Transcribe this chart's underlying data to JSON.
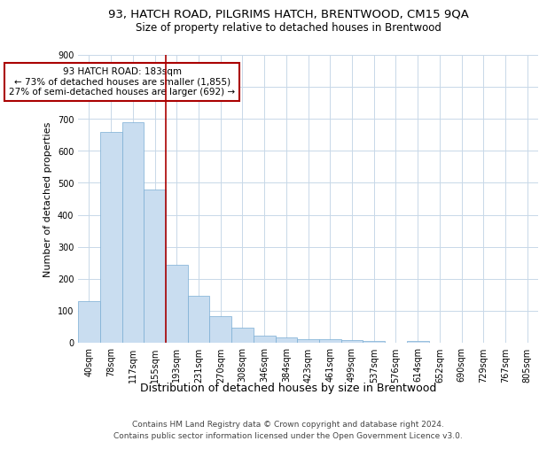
{
  "title": "93, HATCH ROAD, PILGRIMS HATCH, BRENTWOOD, CM15 9QA",
  "subtitle": "Size of property relative to detached houses in Brentwood",
  "xlabel": "Distribution of detached houses by size in Brentwood",
  "ylabel": "Number of detached properties",
  "bar_labels": [
    "40sqm",
    "78sqm",
    "117sqm",
    "155sqm",
    "193sqm",
    "231sqm",
    "270sqm",
    "308sqm",
    "346sqm",
    "384sqm",
    "423sqm",
    "461sqm",
    "499sqm",
    "537sqm",
    "576sqm",
    "614sqm",
    "652sqm",
    "690sqm",
    "729sqm",
    "767sqm",
    "805sqm"
  ],
  "bar_values": [
    130,
    660,
    690,
    480,
    245,
    148,
    83,
    48,
    22,
    18,
    10,
    10,
    8,
    5,
    1,
    6,
    0,
    0,
    0,
    0,
    0
  ],
  "bar_color": "#c9ddf0",
  "bar_edge_color": "#7aadd4",
  "vline_x_index": 4,
  "vline_color": "#aa0000",
  "annotation_text": "93 HATCH ROAD: 183sqm\n← 73% of detached houses are smaller (1,855)\n27% of semi-detached houses are larger (692) →",
  "annotation_box_color": "#ffffff",
  "annotation_box_edge_color": "#aa0000",
  "footnote1": "Contains HM Land Registry data © Crown copyright and database right 2024.",
  "footnote2": "Contains public sector information licensed under the Open Government Licence v3.0.",
  "background_color": "#ffffff",
  "grid_color": "#c8d8e8",
  "ylim": [
    0,
    900
  ],
  "yticks": [
    0,
    100,
    200,
    300,
    400,
    500,
    600,
    700,
    800,
    900
  ],
  "title_fontsize": 9.5,
  "subtitle_fontsize": 8.5,
  "xlabel_fontsize": 9,
  "ylabel_fontsize": 8,
  "tick_fontsize": 7,
  "annotation_fontsize": 7.5,
  "footnote_fontsize": 6.5
}
